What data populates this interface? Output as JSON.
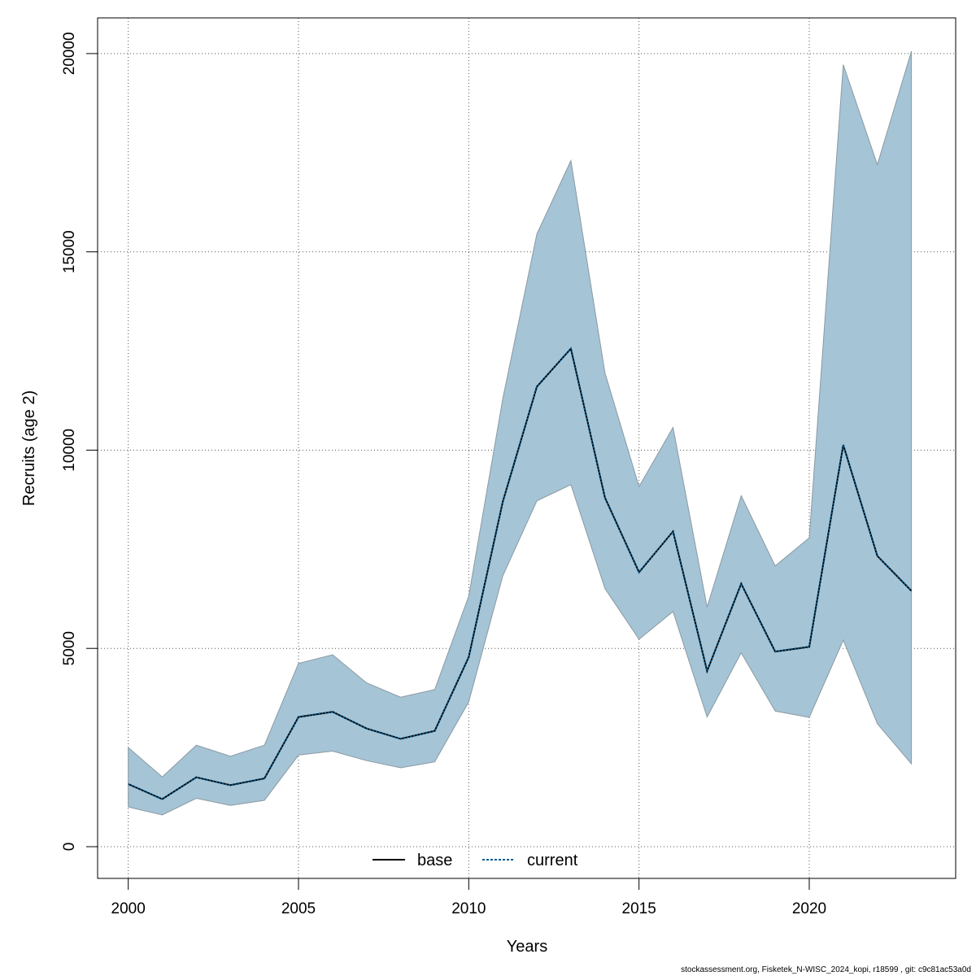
{
  "chart_data": {
    "type": "area",
    "xlabel": "Years",
    "ylabel": "Recruits (age 2)",
    "xlim": [
      1999.1,
      2024.3
    ],
    "ylim": [
      -800,
      20900
    ],
    "x_ticks": [
      2000,
      2005,
      2010,
      2015,
      2020
    ],
    "y_ticks": [
      0,
      5000,
      10000,
      15000,
      20000
    ],
    "grid": true,
    "legend_position": "bottom-center",
    "x": [
      2000,
      2001,
      2002,
      2003,
      2004,
      2005,
      2006,
      2007,
      2008,
      2009,
      2010,
      2011,
      2012,
      2013,
      2014,
      2015,
      2016,
      2017,
      2018,
      2019,
      2020,
      2021,
      2022,
      2023
    ],
    "series": [
      {
        "name": "base",
        "color": "#000000",
        "line_style": "solid",
        "values": [
          1580,
          1200,
          1750,
          1550,
          1720,
          3270,
          3400,
          2980,
          2720,
          2920,
          4780,
          8700,
          11600,
          12560,
          8800,
          6920,
          7950,
          4430,
          6630,
          4920,
          5040,
          10130,
          7330,
          6450
        ]
      },
      {
        "name": "current",
        "color": "#005a8c",
        "line_style": "dotted",
        "values": [
          1580,
          1200,
          1750,
          1550,
          1720,
          3270,
          3400,
          2980,
          2720,
          2920,
          4780,
          8700,
          11600,
          12560,
          8800,
          6920,
          7950,
          4430,
          6630,
          4920,
          5040,
          10130,
          7330,
          6450
        ]
      }
    ],
    "band": {
      "color": "#a5c4d6",
      "lower": [
        1000,
        800,
        1220,
        1040,
        1170,
        2310,
        2410,
        2170,
        1990,
        2140,
        3650,
        6830,
        8720,
        9130,
        6510,
        5230,
        5930,
        3270,
        4890,
        3420,
        3260,
        5210,
        3100,
        2090
      ],
      "upper": [
        2500,
        1760,
        2560,
        2280,
        2560,
        4620,
        4840,
        4130,
        3770,
        3960,
        6320,
        11300,
        15450,
        17300,
        11950,
        9080,
        10570,
        6040,
        8850,
        7080,
        7790,
        19720,
        17200,
        20060
      ]
    }
  },
  "footer_text": "stockassessment.org, Fisketek_N-WISC_2024_kopi, r18599 , git: c9c81ac53a0d"
}
